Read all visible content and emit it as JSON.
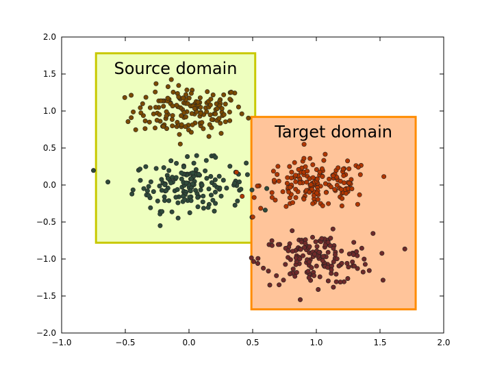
{
  "chart_data": {
    "type": "scatter",
    "title": "",
    "xlabel": "",
    "ylabel": "",
    "xlim": [
      -1.0,
      2.0
    ],
    "ylim": [
      -2.0,
      2.0
    ],
    "grid": false,
    "x_ticks": [
      "−1.0",
      "−0.5",
      "0.0",
      "0.5",
      "1.0",
      "1.5",
      "2.0"
    ],
    "y_ticks": [
      "−2.0",
      "−1.5",
      "−1.0",
      "−0.5",
      "0.0",
      "0.5",
      "1.0",
      "1.5",
      "2.0"
    ],
    "regions": [
      {
        "label": "Source domain",
        "x0": -0.73,
        "x1": 0.52,
        "y0": -0.78,
        "y1": 1.78,
        "fill": "#eeffbf",
        "stroke": "#c8c800"
      },
      {
        "label": "Target domain",
        "x0": 0.49,
        "x1": 1.78,
        "y0": -1.68,
        "y1": 0.92,
        "fill": "#ffc49a",
        "stroke": "#ff8c00"
      }
    ],
    "clusters": [
      {
        "color": "#7a4a00",
        "center": [
          0.0,
          1.0
        ],
        "spread": [
          0.22,
          0.17
        ],
        "count": 160
      },
      {
        "color": "#2f4a3a",
        "center": [
          0.0,
          0.0
        ],
        "spread": [
          0.22,
          0.17
        ],
        "count": 160
      },
      {
        "color": "#b03600",
        "center": [
          1.0,
          0.0
        ],
        "spread": [
          0.22,
          0.17
        ],
        "count": 160
      },
      {
        "color": "#6e2a2a",
        "center": [
          1.0,
          -1.0
        ],
        "spread": [
          0.22,
          0.17
        ],
        "count": 160
      }
    ]
  }
}
